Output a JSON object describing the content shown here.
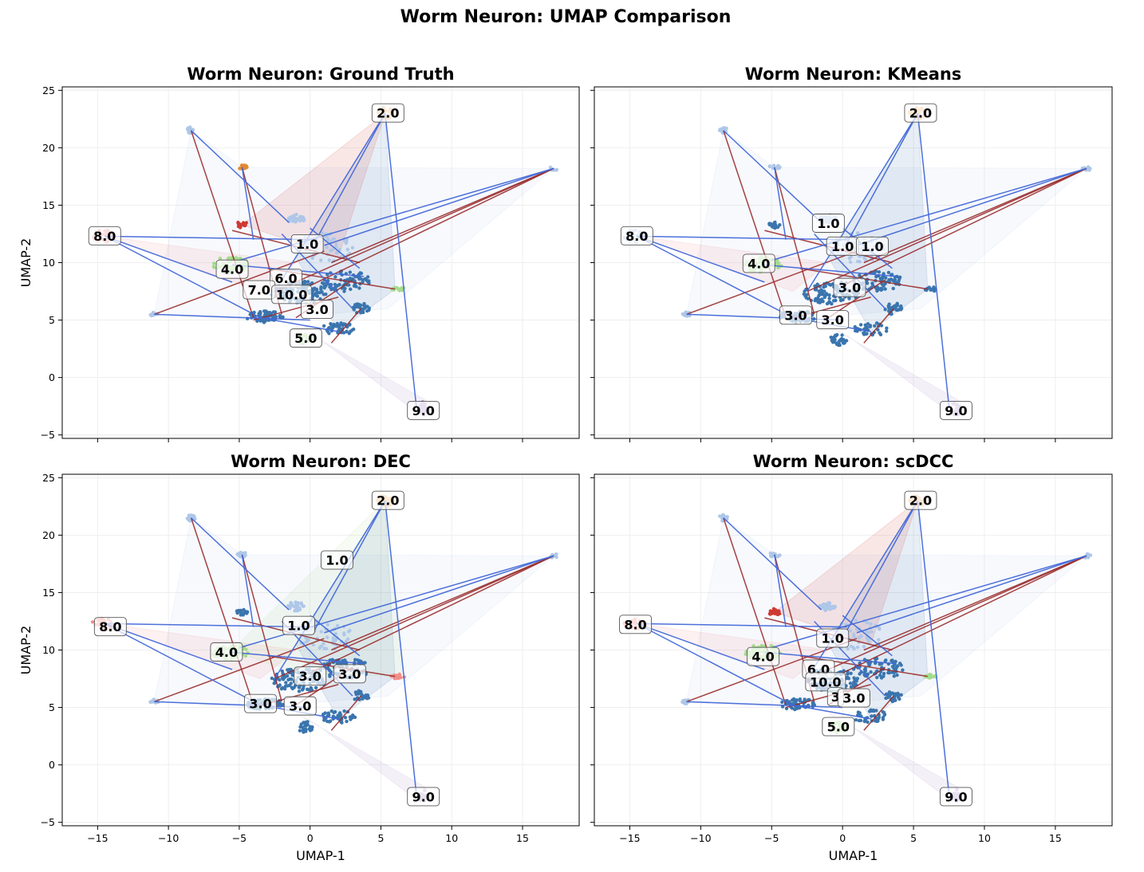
{
  "figure_title": "Worm Neuron: UMAP Comparison",
  "colors": {
    "dark_blue": "#3a75ae",
    "light_blue": "#aec7e8",
    "orange": "#f4b473",
    "dark_orange": "#e28a32",
    "red": "#cf3a33",
    "pink": "#f08f8a",
    "light_green": "#a3dc8d",
    "green": "#3b9b3b",
    "purple": "#b39ccf",
    "edge_red": "#9a2c2c",
    "edge_blue": "#4268d8"
  },
  "chart_data": [
    {
      "type": "scatter",
      "title": "Worm Neuron: Ground Truth",
      "xlabel": "",
      "ylabel": "UMAP-2",
      "xlim": [
        -17.5,
        19
      ],
      "ylim": [
        -5.3,
        25.3
      ],
      "xticks": [
        -15,
        -10,
        -5,
        0,
        5,
        10,
        15
      ],
      "yticks": [
        -5,
        0,
        5,
        10,
        15,
        20,
        25
      ],
      "show_x_tick_labels": false,
      "show_y_tick_labels": true,
      "grid": true,
      "cluster_labels": [
        {
          "text": "2.0",
          "x": 5.5,
          "y": 23.0
        },
        {
          "text": "8.0",
          "x": -14.5,
          "y": 12.3
        },
        {
          "text": "1.0",
          "x": -0.2,
          "y": 11.6
        },
        {
          "text": "4.0",
          "x": -5.5,
          "y": 9.4
        },
        {
          "text": "6.0",
          "x": -1.7,
          "y": 8.6
        },
        {
          "text": "7.0",
          "x": -3.6,
          "y": 7.6
        },
        {
          "text": "10.0",
          "x": -1.3,
          "y": 7.2
        },
        {
          "text": "3.0",
          "x": 0.5,
          "y": 5.9
        },
        {
          "text": "5.0",
          "x": -0.3,
          "y": 3.4
        },
        {
          "text": "9.0",
          "x": 8.0,
          "y": -2.9
        }
      ]
    },
    {
      "type": "scatter",
      "title": "Worm Neuron: KMeans",
      "xlabel": "",
      "ylabel": "",
      "xlim": [
        -17.5,
        19
      ],
      "ylim": [
        -5.3,
        25.3
      ],
      "xticks": [
        -15,
        -10,
        -5,
        0,
        5,
        10,
        15
      ],
      "yticks": [
        -5,
        0,
        5,
        10,
        15,
        20,
        25
      ],
      "show_x_tick_labels": false,
      "show_y_tick_labels": false,
      "grid": true,
      "cluster_labels": [
        {
          "text": "2.0",
          "x": 5.5,
          "y": 23.0
        },
        {
          "text": "8.0",
          "x": -14.5,
          "y": 12.3
        },
        {
          "text": "1.0",
          "x": -1.0,
          "y": 13.4
        },
        {
          "text": "1.0",
          "x": 0.0,
          "y": 11.4
        },
        {
          "text": "1.0",
          "x": 2.1,
          "y": 11.4
        },
        {
          "text": "4.0",
          "x": -5.9,
          "y": 9.9
        },
        {
          "text": "3.0",
          "x": 0.5,
          "y": 7.8
        },
        {
          "text": "3.0",
          "x": -3.3,
          "y": 5.4
        },
        {
          "text": "3.0",
          "x": -0.7,
          "y": 5.0
        },
        {
          "text": "9.0",
          "x": 8.0,
          "y": -2.9
        }
      ]
    },
    {
      "type": "scatter",
      "title": "Worm Neuron: DEC",
      "xlabel": "UMAP-1",
      "ylabel": "UMAP-2",
      "xlim": [
        -17.5,
        19
      ],
      "ylim": [
        -5.3,
        25.3
      ],
      "xticks": [
        -15,
        -10,
        -5,
        0,
        5,
        10,
        15
      ],
      "yticks": [
        -5,
        0,
        5,
        10,
        15,
        20,
        25
      ],
      "show_x_tick_labels": true,
      "show_y_tick_labels": true,
      "grid": true,
      "cluster_labels": [
        {
          "text": "2.0",
          "x": 5.5,
          "y": 23.0
        },
        {
          "text": "1.0",
          "x": 1.9,
          "y": 17.8
        },
        {
          "text": "8.0",
          "x": -14.1,
          "y": 12.0
        },
        {
          "text": "1.0",
          "x": -0.8,
          "y": 12.1
        },
        {
          "text": "4.0",
          "x": -5.9,
          "y": 9.8
        },
        {
          "text": "3.0",
          "x": 0.0,
          "y": 7.7
        },
        {
          "text": "3.0",
          "x": 2.8,
          "y": 7.9
        },
        {
          "text": "3.0",
          "x": -3.5,
          "y": 5.3
        },
        {
          "text": "3.0",
          "x": -0.7,
          "y": 5.1
        },
        {
          "text": "9.0",
          "x": 8.0,
          "y": -2.8
        }
      ]
    },
    {
      "type": "scatter",
      "title": "Worm Neuron: scDCC",
      "xlabel": "UMAP-1",
      "ylabel": "",
      "xlim": [
        -17.5,
        19
      ],
      "ylim": [
        -5.3,
        25.3
      ],
      "xticks": [
        -15,
        -10,
        -5,
        0,
        5,
        10,
        15
      ],
      "yticks": [
        -5,
        0,
        5,
        10,
        15,
        20,
        25
      ],
      "show_x_tick_labels": true,
      "show_y_tick_labels": false,
      "grid": true,
      "cluster_labels": [
        {
          "text": "2.0",
          "x": 5.5,
          "y": 23.0
        },
        {
          "text": "8.0",
          "x": -14.6,
          "y": 12.2
        },
        {
          "text": "1.0",
          "x": -0.7,
          "y": 11.0
        },
        {
          "text": "4.0",
          "x": -5.6,
          "y": 9.4
        },
        {
          "text": "6.0",
          "x": -1.7,
          "y": 8.3
        },
        {
          "text": "10.0",
          "x": -1.2,
          "y": 7.2
        },
        {
          "text": "3",
          "x": -0.5,
          "y": 5.9
        },
        {
          "text": "3.0",
          "x": 0.8,
          "y": 5.8
        },
        {
          "text": "5.0",
          "x": -0.3,
          "y": 3.3
        },
        {
          "text": "9.0",
          "x": 8.0,
          "y": -2.8
        }
      ]
    }
  ]
}
